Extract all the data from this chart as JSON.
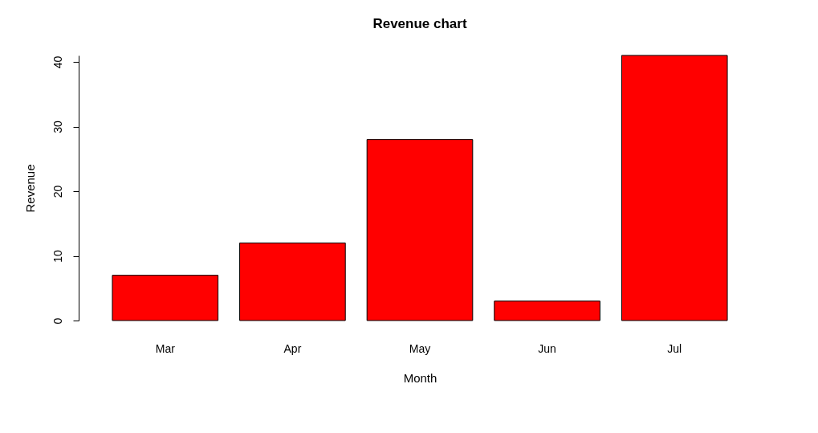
{
  "chart_data": {
    "type": "bar",
    "title": "Revenue chart",
    "xlabel": "Month",
    "ylabel": "Revenue",
    "categories": [
      "Mar",
      "Apr",
      "May",
      "Jun",
      "Jul"
    ],
    "values": [
      7,
      12,
      28,
      3,
      41
    ],
    "color": "#ff0000",
    "ylim": [
      0,
      41
    ],
    "yticks": [
      0,
      10,
      20,
      30,
      40
    ],
    "grid": false
  }
}
